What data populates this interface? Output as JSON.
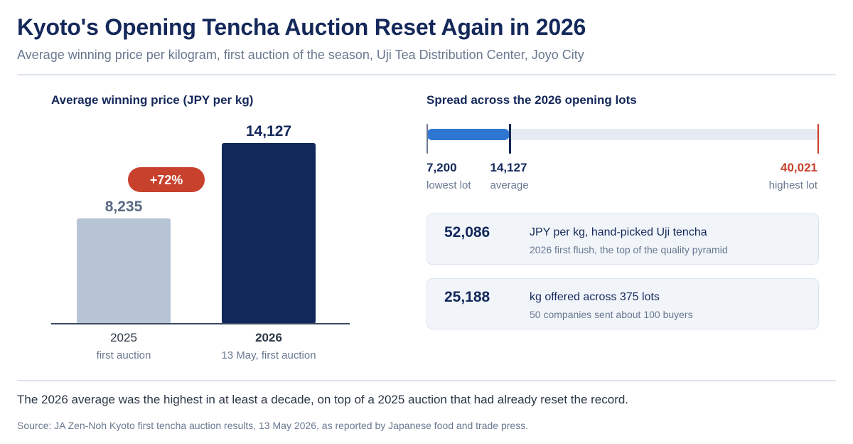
{
  "header": {
    "title": "Kyoto's Opening Tencha Auction Reset Again in 2026",
    "subtitle": "Average winning price per kilogram, first auction of the season, Uji Tea Distribution Center, Joyo City"
  },
  "left_panel": {
    "title": "Average winning price (JPY per kg)",
    "change_badge": "+72%"
  },
  "right_panel": {
    "title": "Spread across the 2026 opening lots",
    "low": {
      "value": "7,200",
      "caption": "lowest lot"
    },
    "avg": {
      "value": "14,127",
      "caption": "average"
    },
    "high": {
      "value": "40,021",
      "caption": "highest lot"
    },
    "cards": [
      {
        "value": "52,086",
        "label": "JPY per kg, hand-picked Uji tencha",
        "sub": "2026 first flush, the top of the quality pyramid"
      },
      {
        "value": "25,188",
        "label": "kg offered across 375 lots",
        "sub": "50 companies sent about 100 buyers"
      }
    ]
  },
  "footer": {
    "note": "The 2026 average was the highest in at least a decade, on top of a 2025 auction that had already reset the record.",
    "source": "Source: JA Zen-Noh Kyoto first tencha auction results, 13 May 2026, as reported by Japanese food and trade press."
  },
  "colors": {
    "bar_2025": "#b7c4d5",
    "bar_2026": "#13285a",
    "badge": "#c8412d",
    "spread_fill": "#2e76d2",
    "high_marker": "#c8412d"
  },
  "chart_data": [
    {
      "type": "bar",
      "categories": [
        "2025",
        "2026"
      ],
      "category_captions": [
        "first auction",
        "13 May, first auction"
      ],
      "values": [
        8235,
        14127
      ],
      "value_labels": [
        "8,235",
        "14,127"
      ],
      "title": "Average winning price (JPY per kg)",
      "ylim": [
        0,
        16000
      ],
      "grid": false
    },
    {
      "type": "range",
      "min": 7200,
      "mean": 14127,
      "max": 40021,
      "title": "Spread across the 2026 opening lots"
    }
  ]
}
